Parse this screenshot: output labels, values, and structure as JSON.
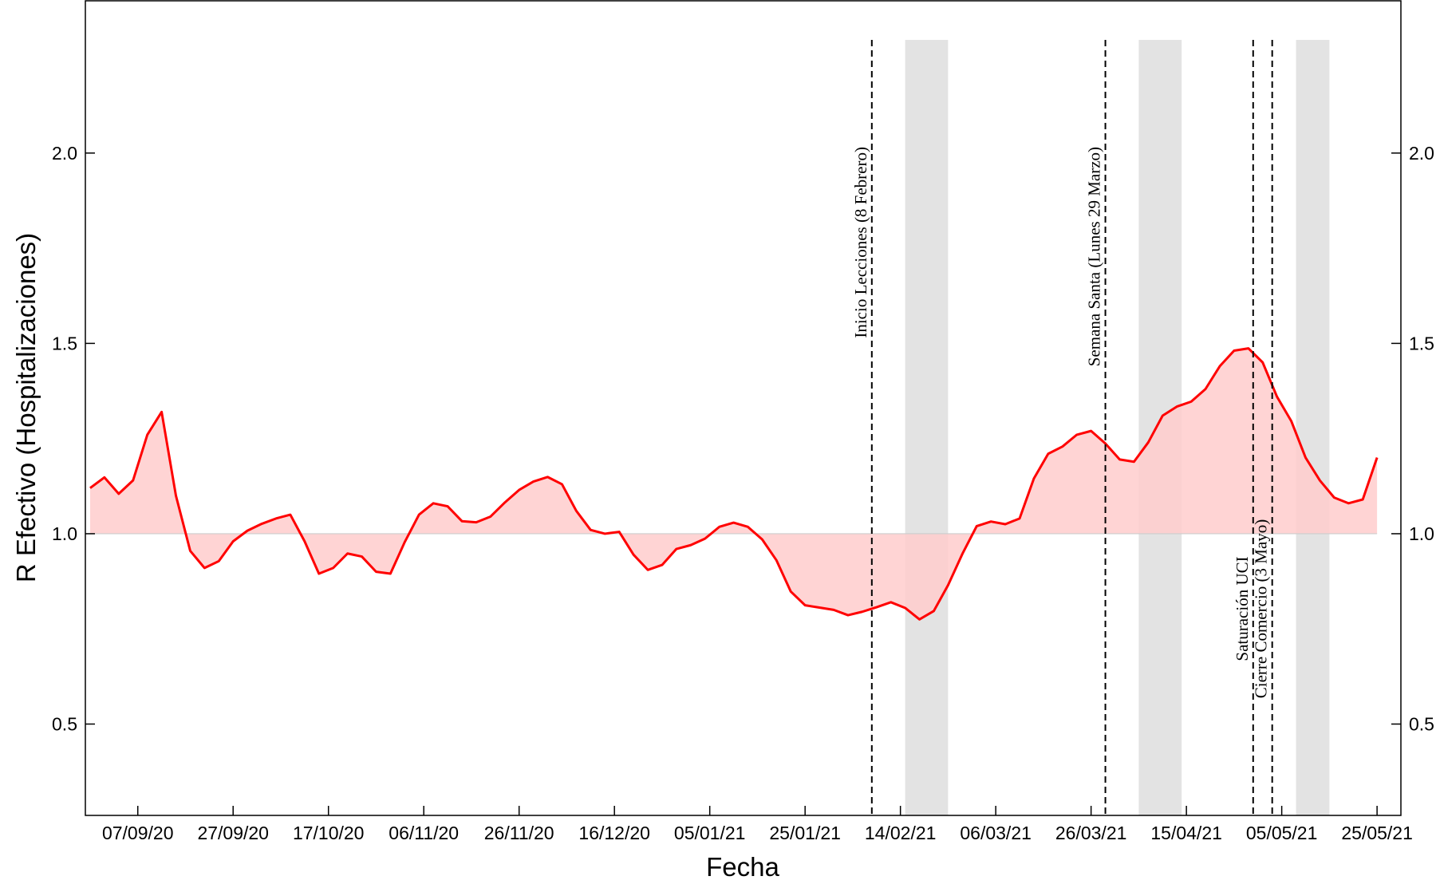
{
  "chart_data": {
    "type": "line",
    "xlabel": "Fecha",
    "ylabel": "R Efectivo (Hospitalizaciones)",
    "x": [
      "28/08/20",
      "31/08/20",
      "03/09/20",
      "06/09/20",
      "09/09/20",
      "12/09/20",
      "15/09/20",
      "18/09/20",
      "21/09/20",
      "24/09/20",
      "27/09/20",
      "30/09/20",
      "03/10/20",
      "06/10/20",
      "09/10/20",
      "12/10/20",
      "15/10/20",
      "18/10/20",
      "21/10/20",
      "24/10/20",
      "27/10/20",
      "30/10/20",
      "02/11/20",
      "05/11/20",
      "08/11/20",
      "11/11/20",
      "14/11/20",
      "17/11/20",
      "20/11/20",
      "23/11/20",
      "26/11/20",
      "29/11/20",
      "02/12/20",
      "05/12/20",
      "08/12/20",
      "11/12/20",
      "14/12/20",
      "17/12/20",
      "20/12/20",
      "23/12/20",
      "26/12/20",
      "29/12/20",
      "01/01/21",
      "04/01/21",
      "07/01/21",
      "10/01/21",
      "13/01/21",
      "16/01/21",
      "19/01/21",
      "22/01/21",
      "25/01/21",
      "28/01/21",
      "31/01/21",
      "03/02/21",
      "06/02/21",
      "09/02/21",
      "12/02/21",
      "15/02/21",
      "18/02/21",
      "21/02/21",
      "24/02/21",
      "27/02/21",
      "02/03/21",
      "05/03/21",
      "08/03/21",
      "11/03/21",
      "14/03/21",
      "17/03/21",
      "20/03/21",
      "23/03/21",
      "26/03/21",
      "29/03/21",
      "01/04/21",
      "04/04/21",
      "07/04/21",
      "10/04/21",
      "13/04/21",
      "16/04/21",
      "19/04/21",
      "22/04/21",
      "25/04/21",
      "28/04/21",
      "01/05/21",
      "04/05/21",
      "07/05/21",
      "10/05/21",
      "13/05/21",
      "16/05/21",
      "19/05/21",
      "22/05/21",
      "25/05/21"
    ],
    "series": [
      {
        "color": "#ff0000",
        "fill": "#ffcccc",
        "values": [
          1.12,
          1.148,
          1.105,
          1.14,
          1.26,
          1.32,
          1.1,
          0.955,
          0.91,
          0.928,
          0.98,
          1.008,
          1.026,
          1.04,
          1.05,
          0.98,
          0.895,
          0.91,
          0.948,
          0.94,
          0.9,
          0.895,
          0.978,
          1.05,
          1.08,
          1.072,
          1.033,
          1.03,
          1.045,
          1.082,
          1.115,
          1.137,
          1.149,
          1.13,
          1.06,
          1.01,
          1.0,
          1.005,
          0.945,
          0.905,
          0.918,
          0.96,
          0.97,
          0.987,
          1.018,
          1.029,
          1.018,
          0.985,
          0.93,
          0.848,
          0.812,
          0.806,
          0.8,
          0.786,
          0.795,
          0.807,
          0.82,
          0.805,
          0.775,
          0.797,
          0.865,
          0.947,
          1.02,
          1.032,
          1.025,
          1.04,
          1.145,
          1.21,
          1.229,
          1.26,
          1.27,
          1.237,
          1.195,
          1.189,
          1.24,
          1.31,
          1.334,
          1.347,
          1.38,
          1.44,
          1.481,
          1.487,
          1.45,
          1.36,
          1.296,
          1.2,
          1.14,
          1.095,
          1.08,
          1.09,
          1.2
        ]
      }
    ],
    "reference_line": {
      "value": 1.0,
      "color": "#cccccc"
    },
    "xlim": [
      "27/08/20",
      "30/05/21"
    ],
    "ylim": [
      0.26,
      2.4
    ],
    "xticks": [
      "07/09/20",
      "27/09/20",
      "17/10/20",
      "06/11/20",
      "26/11/20",
      "16/12/20",
      "05/01/21",
      "25/01/21",
      "14/02/21",
      "06/03/21",
      "26/03/21",
      "15/04/21",
      "05/05/21",
      "25/05/21"
    ],
    "yticks": [
      0.5,
      {
        "value": 1.0,
        "label": "1.0"
      },
      1.5,
      {
        "value": 2.0,
        "label": "2.0"
      }
    ],
    "right_axis": true,
    "shaded_periods": [
      {
        "start": "15/02/21",
        "end": "24/02/21",
        "color": "#e3e3e3"
      },
      {
        "start": "05/04/21",
        "end": "14/04/21",
        "color": "#e3e3e3"
      },
      {
        "start": "08/05/21",
        "end": "15/05/21",
        "color": "#e3e3e3"
      }
    ],
    "events": [
      {
        "x": "08/02/21",
        "label": "Inicio Lecciones (8 Febrero)",
        "position": "top"
      },
      {
        "x": "29/03/21",
        "label": "Semana Santa (Lunes 29 Marzo)",
        "position": "top"
      },
      {
        "x": "29/04/21",
        "label": "Saturación UCI",
        "position": "bottom"
      },
      {
        "x": "03/05/21",
        "label": "Cierre Comercio (3 Mayo)",
        "position": "bottom"
      }
    ]
  }
}
